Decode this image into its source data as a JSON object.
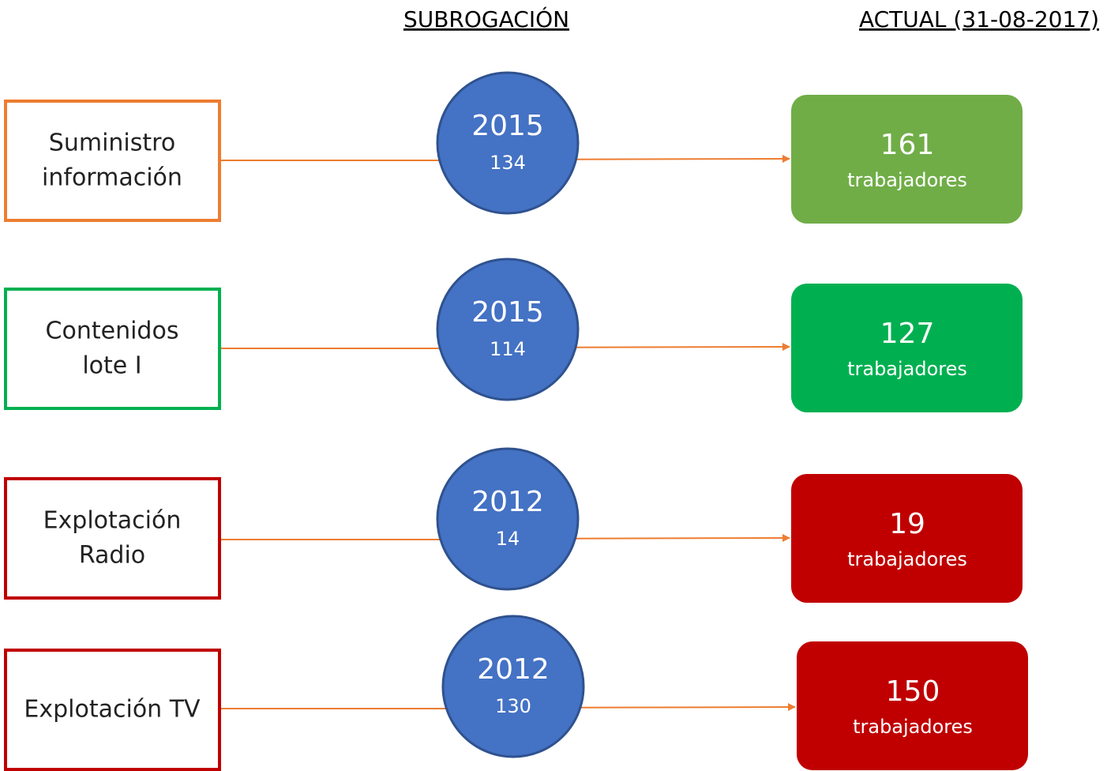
{
  "headers": {
    "left": "SUBROGACIÓN",
    "right": "ACTUAL (31-08-2017)"
  },
  "unit": "trabajadores",
  "rows": [
    {
      "label": [
        "Suministro",
        "información"
      ],
      "color": "#ED7D31",
      "year": 2015,
      "count": 134,
      "current": 161,
      "current_color": "#70AD47"
    },
    {
      "label": [
        "Contenidos",
        "lote I"
      ],
      "color": "#00B050",
      "year": 2015,
      "count": 114,
      "current": 127,
      "current_color": "#00B050"
    },
    {
      "label": [
        "Explotación",
        "Radio"
      ],
      "color": "#C00000",
      "year": 2012,
      "count": 14,
      "current": 19,
      "current_color": "#C00000"
    },
    {
      "label": [
        "Explotación TV"
      ],
      "color": "#C00000",
      "year": 2012,
      "count": 130,
      "current": 150,
      "current_color": "#C00000"
    }
  ]
}
